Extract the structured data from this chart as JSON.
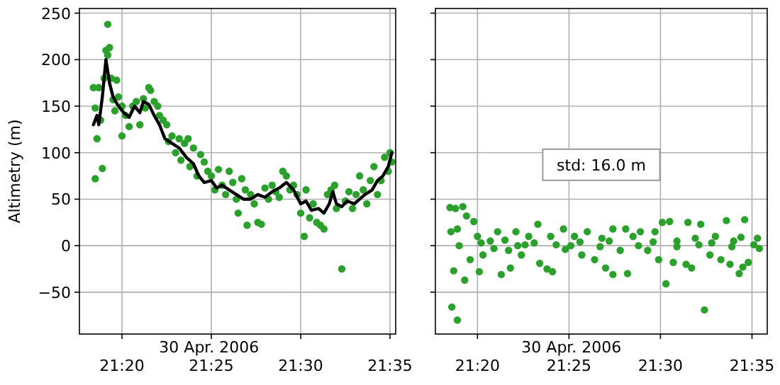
{
  "chart_data": [
    {
      "type": "scatter",
      "ylabel": "Altimetry (m)",
      "xlabel": "30 Apr. 2006",
      "xlim": [
        "2006-04-30T21:17:37",
        "2006-04-30T21:35:19"
      ],
      "ylim": [
        -95,
        255
      ],
      "xticks": [
        {
          "value": "2006-04-30T21:20",
          "label": "21:20"
        },
        {
          "value": "2006-04-30T21:25",
          "label": "21:25"
        },
        {
          "value": "2006-04-30T21:30",
          "label": "21:30"
        },
        {
          "value": "2006-04-30T21:35",
          "label": "21:35"
        }
      ],
      "yticks": [
        -50,
        0,
        50,
        100,
        150,
        200,
        250
      ],
      "grid": true,
      "marker": "circle",
      "series": [
        {
          "color": "#2ca02c",
          "x": [
            "2006-04-30T21:18:24",
            "2006-04-30T21:18:30",
            "2006-04-30T21:18:30",
            "2006-04-30T21:18:36",
            "2006-04-30T21:18:42",
            "2006-04-30T21:18:48",
            "2006-04-30T21:18:54",
            "2006-04-30T21:19:00",
            "2006-04-30T21:19:06",
            "2006-04-30T21:19:12",
            "2006-04-30T21:19:12",
            "2006-04-30T21:19:18",
            "2006-04-30T21:19:24",
            "2006-04-30T21:19:30",
            "2006-04-30T21:19:36",
            "2006-04-30T21:19:42",
            "2006-04-30T21:19:48",
            "2006-04-30T21:20:00",
            "2006-04-30T21:20:00",
            "2006-04-30T21:20:12",
            "2006-04-30T21:20:24",
            "2006-04-30T21:20:36",
            "2006-04-30T21:20:48",
            "2006-04-30T21:21:00",
            "2006-04-30T21:21:12",
            "2006-04-30T21:21:18",
            "2006-04-30T21:21:30",
            "2006-04-30T21:21:36",
            "2006-04-30T21:21:48",
            "2006-04-30T21:22:00",
            "2006-04-30T21:22:06",
            "2006-04-30T21:22:18",
            "2006-04-30T21:22:30",
            "2006-04-30T21:22:36",
            "2006-04-30T21:22:48",
            "2006-04-30T21:23:00",
            "2006-04-30T21:23:12",
            "2006-04-30T21:23:18",
            "2006-04-30T21:23:30",
            "2006-04-30T21:23:42",
            "2006-04-30T21:23:48",
            "2006-04-30T21:24:00",
            "2006-04-30T21:24:12",
            "2006-04-30T21:24:24",
            "2006-04-30T21:24:36",
            "2006-04-30T21:24:48",
            "2006-04-30T21:25:00",
            "2006-04-30T21:25:12",
            "2006-04-30T21:25:24",
            "2006-04-30T21:25:36",
            "2006-04-30T21:25:48",
            "2006-04-30T21:26:00",
            "2006-04-30T21:26:12",
            "2006-04-30T21:26:24",
            "2006-04-30T21:26:30",
            "2006-04-30T21:26:42",
            "2006-04-30T21:26:54",
            "2006-04-30T21:27:00",
            "2006-04-30T21:27:12",
            "2006-04-30T21:27:24",
            "2006-04-30T21:27:36",
            "2006-04-30T21:27:48",
            "2006-04-30T21:28:00",
            "2006-04-30T21:28:12",
            "2006-04-30T21:28:24",
            "2006-04-30T21:28:36",
            "2006-04-30T21:28:48",
            "2006-04-30T21:29:00",
            "2006-04-30T21:29:12",
            "2006-04-30T21:29:24",
            "2006-04-30T21:29:36",
            "2006-04-30T21:29:48",
            "2006-04-30T21:30:00",
            "2006-04-30T21:30:12",
            "2006-04-30T21:30:18",
            "2006-04-30T21:30:30",
            "2006-04-30T21:30:42",
            "2006-04-30T21:30:54",
            "2006-04-30T21:31:06",
            "2006-04-30T21:31:18",
            "2006-04-30T21:31:30",
            "2006-04-30T21:31:42",
            "2006-04-30T21:31:54",
            "2006-04-30T21:32:00",
            "2006-04-30T21:32:18",
            "2006-04-30T21:32:30",
            "2006-04-30T21:32:42",
            "2006-04-30T21:32:54",
            "2006-04-30T21:33:06",
            "2006-04-30T21:33:18",
            "2006-04-30T21:33:30",
            "2006-04-30T21:33:42",
            "2006-04-30T21:33:54",
            "2006-04-30T21:34:06",
            "2006-04-30T21:34:18",
            "2006-04-30T21:34:30",
            "2006-04-30T21:34:42",
            "2006-04-30T21:34:54",
            "2006-04-30T21:35:00",
            "2006-04-30T21:35:06"
          ],
          "values": [
            170,
            72,
            148,
            115,
            170,
            135,
            83,
            180,
            210,
            238,
            205,
            213,
            180,
            157,
            145,
            178,
            160,
            150,
            118,
            140,
            128,
            150,
            155,
            130,
            158,
            148,
            170,
            167,
            155,
            150,
            140,
            135,
            130,
            112,
            118,
            100,
            115,
            92,
            110,
            115,
            85,
            105,
            75,
            98,
            90,
            80,
            75,
            60,
            82,
            65,
            55,
            80,
            68,
            50,
            35,
            72,
            60,
            22,
            55,
            45,
            25,
            23,
            62,
            50,
            65,
            58,
            52,
            80,
            75,
            60,
            65,
            55,
            35,
            10,
            60,
            30,
            45,
            25,
            22,
            18,
            55,
            60,
            65,
            40,
            -25,
            48,
            58,
            40,
            55,
            75,
            60,
            45,
            70,
            85,
            55,
            70,
            95,
            80,
            100,
            90
          ]
        },
        {
          "type": "line",
          "color": "#000000",
          "marker": "none",
          "x": [
            "2006-04-30T21:18:24",
            "2006-04-30T21:18:36",
            "2006-04-30T21:18:42",
            "2006-04-30T21:18:54",
            "2006-04-30T21:19:06",
            "2006-04-30T21:19:18",
            "2006-04-30T21:19:30",
            "2006-04-30T21:19:48",
            "2006-04-30T21:20:06",
            "2006-04-30T21:20:24",
            "2006-04-30T21:20:42",
            "2006-04-30T21:21:00",
            "2006-04-30T21:21:12",
            "2006-04-30T21:21:30",
            "2006-04-30T21:21:48",
            "2006-04-30T21:22:06",
            "2006-04-30T21:22:24",
            "2006-04-30T21:22:48",
            "2006-04-30T21:23:12",
            "2006-04-30T21:23:36",
            "2006-04-30T21:24:00",
            "2006-04-30T21:24:18",
            "2006-04-30T21:24:36",
            "2006-04-30T21:25:00",
            "2006-04-30T21:25:18",
            "2006-04-30T21:25:36",
            "2006-04-30T21:26:00",
            "2006-04-30T21:26:24",
            "2006-04-30T21:26:48",
            "2006-04-30T21:27:12",
            "2006-04-30T21:27:36",
            "2006-04-30T21:28:00",
            "2006-04-30T21:28:24",
            "2006-04-30T21:28:48",
            "2006-04-30T21:29:12",
            "2006-04-30T21:29:36",
            "2006-04-30T21:30:00",
            "2006-04-30T21:30:18",
            "2006-04-30T21:30:36",
            "2006-04-30T21:31:00",
            "2006-04-30T21:31:18",
            "2006-04-30T21:31:36",
            "2006-04-30T21:31:48",
            "2006-04-30T21:32:00",
            "2006-04-30T21:32:18",
            "2006-04-30T21:32:36",
            "2006-04-30T21:33:00",
            "2006-04-30T21:33:18",
            "2006-04-30T21:33:36",
            "2006-04-30T21:34:00",
            "2006-04-30T21:34:18",
            "2006-04-30T21:34:36",
            "2006-04-30T21:34:54",
            "2006-04-30T21:35:06"
          ],
          "values": [
            130,
            140,
            130,
            160,
            200,
            175,
            160,
            150,
            143,
            138,
            150,
            143,
            155,
            152,
            140,
            130,
            115,
            110,
            105,
            95,
            88,
            75,
            68,
            70,
            62,
            65,
            60,
            55,
            50,
            50,
            55,
            52,
            58,
            62,
            68,
            60,
            45,
            48,
            38,
            40,
            35,
            45,
            58,
            45,
            42,
            48,
            45,
            50,
            55,
            60,
            70,
            75,
            85,
            100
          ]
        }
      ]
    },
    {
      "type": "scatter",
      "xlabel": "30 Apr. 2006",
      "annotations": [
        "std: 16.0 m"
      ],
      "xlim": [
        "2006-04-30T21:17:42",
        "2006-04-30T21:35:50"
      ],
      "ylim": [
        -95,
        255
      ],
      "xticks": [
        {
          "value": "2006-04-30T21:20",
          "label": "21:20"
        },
        {
          "value": "2006-04-30T21:25",
          "label": "21:25"
        },
        {
          "value": "2006-04-30T21:30",
          "label": "21:30"
        },
        {
          "value": "2006-04-30T21:35",
          "label": "21:35"
        }
      ],
      "yticks": [
        -50,
        0,
        50,
        100,
        150,
        200,
        250
      ],
      "tick_labels": "x",
      "grid": true,
      "marker": "circle",
      "series": [
        {
          "color": "#2ca02c",
          "x": [
            "2006-04-30T21:18:30",
            "2006-04-30T21:18:48",
            "2006-04-30T21:19:12",
            "2006-04-30T21:18:33",
            "2006-04-30T21:18:54",
            "2006-04-30T21:19:00",
            "2006-04-30T21:18:42",
            "2006-04-30T21:18:36",
            "2006-04-30T21:18:54",
            "2006-04-30T21:19:24",
            "2006-04-30T21:19:48",
            "2006-04-30T21:19:18",
            "2006-04-30T21:19:36",
            "2006-04-30T21:20:00",
            "2006-04-30T21:20:06",
            "2006-04-30T21:20:18",
            "2006-04-30T21:20:42",
            "2006-04-30T21:21:06",
            "2006-04-30T21:21:18",
            "2006-04-30T21:21:42",
            "2006-04-30T21:21:48",
            "2006-04-30T21:22:06",
            "2006-04-30T21:22:24",
            "2006-04-30T21:22:48",
            "2006-04-30T21:23:18",
            "2006-04-30T21:23:24",
            "2006-04-30T21:23:48",
            "2006-04-30T21:24:06",
            "2006-04-30T21:24:00",
            "2006-04-30T21:24:42",
            "2006-04-30T21:25:06",
            "2006-04-30T21:25:18",
            "2006-04-30T21:25:42",
            "2006-04-30T21:26:00",
            "2006-04-30T21:26:24",
            "2006-04-30T21:26:48",
            "2006-04-30T21:27:00",
            "2006-04-30T21:27:24",
            "2006-04-30T21:27:24",
            "2006-04-30T21:27:48",
            "2006-04-30T21:28:12",
            "2006-04-30T21:28:06",
            "2006-04-30T21:28:30",
            "2006-04-30T21:28:54",
            "2006-04-30T21:29:18",
            "2006-04-30T21:29:42",
            "2006-04-30T21:29:54",
            "2006-04-30T21:30:06",
            "2006-04-30T21:30:18",
            "2006-04-30T21:30:30",
            "2006-04-30T21:30:42",
            "2006-04-30T21:30:54",
            "2006-04-30T21:31:24",
            "2006-04-30T21:31:30",
            "2006-04-30T21:31:42",
            "2006-04-30T21:31:54",
            "2006-04-30T21:32:12",
            "2006-04-30T21:32:24",
            "2006-04-30T21:32:42",
            "2006-04-30T21:33:00",
            "2006-04-30T21:33:18",
            "2006-04-30T21:33:36",
            "2006-04-30T21:33:48",
            "2006-04-30T21:34:00",
            "2006-04-30T21:34:18",
            "2006-04-30T21:34:30",
            "2006-04-30T21:34:36",
            "2006-04-30T21:34:48",
            "2006-04-30T21:35:06",
            "2006-04-30T21:35:18",
            "2006-04-30T21:35:24",
            "2006-04-30T21:20:12",
            "2006-04-30T21:20:54",
            "2006-04-30T21:21:30",
            "2006-04-30T21:22:12",
            "2006-04-30T21:22:36",
            "2006-04-30T21:23:06",
            "2006-04-30T21:24:18",
            "2006-04-30T21:24:48",
            "2006-04-30T21:25:36",
            "2006-04-30T21:26:42",
            "2006-04-30T21:27:12",
            "2006-04-30T21:28:48",
            "2006-04-30T21:29:36",
            "2006-04-30T21:30:54",
            "2006-04-30T21:32:06",
            "2006-04-30T21:32:48",
            "2006-04-30T21:33:54",
            "2006-04-30T21:34:24"
          ],
          "values": [
            41,
            40,
            42,
            15,
            18,
            0,
            -27,
            -66,
            -80,
            32,
            26,
            -37,
            -15,
            10,
            -28,
            -10,
            5,
            15,
            -31,
            -5,
            -24,
            15,
            -10,
            10,
            23,
            -19,
            -25,
            -28,
            10,
            18,
            0,
            10,
            -10,
            15,
            -15,
            8,
            -24,
            -31,
            18,
            -5,
            -30,
            18,
            10,
            15,
            -5,
            15,
            -15,
            25,
            -41,
            26,
            -18,
            5,
            -20,
            25,
            -24,
            8,
            23,
            -69,
            -10,
            10,
            -15,
            27,
            -20,
            5,
            -30,
            -23,
            28,
            -18,
            1,
            8,
            -3,
            3,
            -3,
            6,
            0,
            1,
            3,
            1,
            -4,
            4,
            -1,
            5,
            0,
            4,
            -1,
            1,
            3,
            -1,
            9
          ]
        }
      ]
    }
  ]
}
